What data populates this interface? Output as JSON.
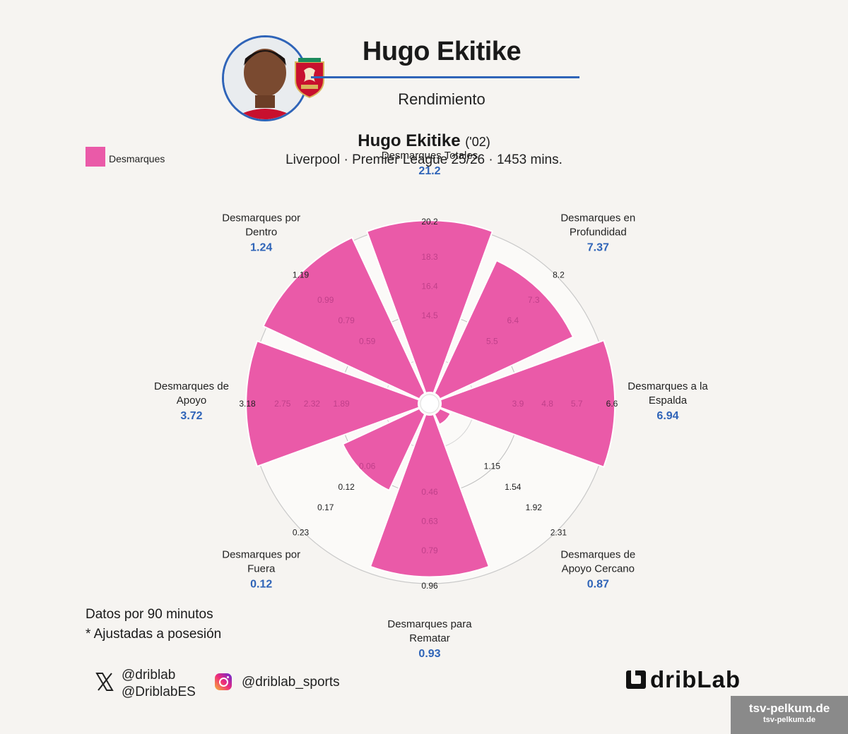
{
  "header": {
    "player_name": "Hugo Ekitike",
    "subtitle": "Rendimiento"
  },
  "legend": {
    "label": "Desmarques",
    "color": "#ea5aa8"
  },
  "chart_title": {
    "name": "Hugo Ekitike",
    "year": "('02)",
    "subtitle": "Liverpool · Premier League 25/26 · 1453 mins."
  },
  "notes": {
    "per90": "Datos por 90 minutos",
    "adjusted": "* Ajustadas a posesión"
  },
  "social": {
    "x_handle_1": "@driblab",
    "x_handle_2": "@DriblabES",
    "instagram": "@driblab_sports"
  },
  "brand": {
    "name": "dribLab"
  },
  "watermark": {
    "line1": "tsv-pelkum.de",
    "line2": "tsv-pelkum.de"
  },
  "chart_data": {
    "type": "polar-bar",
    "series": [
      {
        "name": "Desmarques",
        "color": "#ea5aa8"
      }
    ],
    "categories": [
      {
        "label_lines": [
          "Desmarques Totales"
        ],
        "value": 21.2,
        "value_label": "21.2",
        "max_label": "20.2",
        "inner_ticks": [
          "14.5",
          "16.4",
          "18.3"
        ],
        "fill_fraction": 1.02
      },
      {
        "label_lines": [
          "Desmarques en",
          "Profundidad"
        ],
        "value": 7.37,
        "value_label": "7.37",
        "max_label": "8.2",
        "inner_ticks": [
          "5.5",
          "6.4",
          "7.3"
        ],
        "fill_fraction": 0.87
      },
      {
        "label_lines": [
          "Desmarques a la",
          "Espalda"
        ],
        "value": 6.94,
        "value_label": "6.94",
        "max_label": "6.6",
        "inner_ticks": [
          "3.9",
          "4.8",
          "5.7"
        ],
        "fill_fraction": 1.03
      },
      {
        "label_lines": [
          "Desmarques de",
          "Apoyo Cercano"
        ],
        "value": 0.87,
        "value_label": "0.87",
        "max_label": "2.31",
        "inner_ticks": [
          "1.15",
          "1.54",
          "1.92"
        ],
        "fill_fraction": 0.07
      },
      {
        "label_lines": [
          "Desmarques para",
          "Rematar"
        ],
        "value": 0.93,
        "value_label": "0.93",
        "max_label": "0.96",
        "inner_ticks": [
          "0.46",
          "0.63",
          "0.79"
        ],
        "fill_fraction": 0.96
      },
      {
        "label_lines": [
          "Desmarques por",
          "Fuera"
        ],
        "value": 0.12,
        "value_label": "0.12",
        "max_label": "0.23",
        "inner_ticks": [
          "0.06",
          "0.12",
          "0.17"
        ],
        "fill_fraction": 0.5
      },
      {
        "label_lines": [
          "Desmarques de",
          "Apoyo"
        ],
        "value": 3.72,
        "value_label": "3.72",
        "max_label": "3.18",
        "inner_ticks": [
          "1.89",
          "2.32",
          "2.75"
        ],
        "fill_fraction": 1.02
      },
      {
        "label_lines": [
          "Desmarques por",
          "Dentro"
        ],
        "value": 1.24,
        "value_label": "1.24",
        "max_label": "1.19",
        "inner_ticks": [
          "0.59",
          "0.79",
          "0.99"
        ],
        "fill_fraction": 1.02
      }
    ]
  }
}
